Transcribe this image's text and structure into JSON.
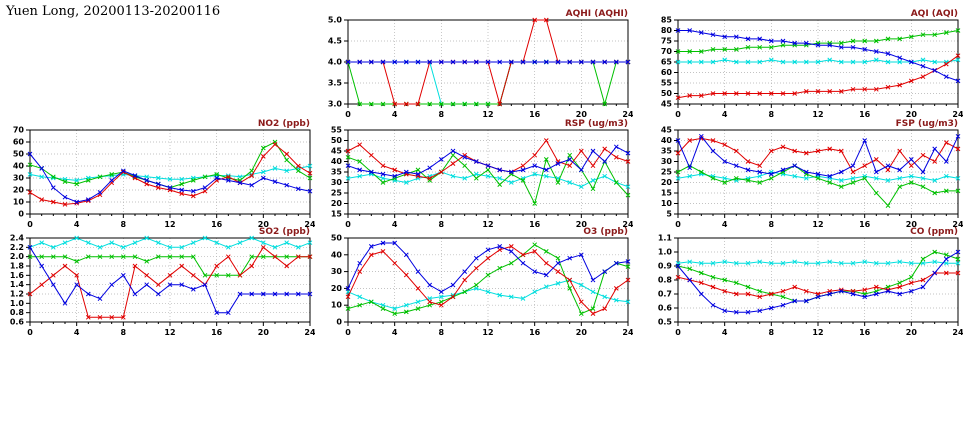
{
  "page": {
    "title": "Yuen Long, 20200113-20200116"
  },
  "palette": {
    "blue": "#0000e0",
    "red": "#e00000",
    "green": "#00c000",
    "cyan": "#00dede",
    "grid": "#b0b0b0",
    "axis": "#000000",
    "chart_title": "#8b1a1a"
  },
  "chart_data": [
    {
      "id": "aqhi",
      "type": "line",
      "title": "AQHI (AQHI)",
      "x_range": [
        0,
        24
      ],
      "x_step": 1,
      "x_major": 4,
      "y_range": [
        3.0,
        5.0
      ],
      "y_step": 0.5,
      "y_decimals": 1,
      "series": [
        {
          "name": "cyan",
          "color": "#00dede",
          "values": [
            4,
            4,
            4,
            4,
            4,
            4,
            4,
            4,
            3,
            3,
            3,
            3,
            3,
            3,
            4,
            4,
            4,
            4,
            4,
            4,
            4,
            4,
            4,
            4,
            4
          ]
        },
        {
          "name": "green",
          "color": "#00c000",
          "values": [
            4,
            3,
            3,
            3,
            3,
            3,
            3,
            3,
            3,
            3,
            3,
            3,
            3,
            3,
            4,
            4,
            4,
            4,
            4,
            4,
            4,
            4,
            3,
            4,
            4
          ]
        },
        {
          "name": "red",
          "color": "#e00000",
          "values": [
            4,
            4,
            4,
            4,
            3,
            3,
            3,
            4,
            4,
            4,
            4,
            4,
            4,
            3,
            4,
            4,
            5,
            5,
            4,
            4,
            4,
            4,
            4,
            4,
            4
          ]
        },
        {
          "name": "blue",
          "color": "#0000e0",
          "values": [
            4,
            4,
            4,
            4,
            4,
            4,
            4,
            4,
            4,
            4,
            4,
            4,
            4,
            4,
            4,
            4,
            4,
            4,
            4,
            4,
            4,
            4,
            4,
            4,
            4
          ]
        }
      ]
    },
    {
      "id": "aqi",
      "type": "line",
      "title": "AQI (AQI)",
      "x_range": [
        0,
        24
      ],
      "x_step": 1,
      "x_major": 4,
      "y_range": [
        45,
        85
      ],
      "y_step": 5,
      "y_decimals": 0,
      "series": [
        {
          "name": "cyan",
          "color": "#00dede",
          "values": [
            65,
            65,
            65,
            65,
            66,
            65,
            65,
            65,
            66,
            65,
            65,
            65,
            65,
            66,
            65,
            65,
            65,
            66,
            65,
            65,
            65,
            66,
            65,
            65,
            66
          ]
        },
        {
          "name": "green",
          "color": "#00c000",
          "values": [
            70,
            70,
            70,
            71,
            71,
            71,
            72,
            72,
            72,
            73,
            73,
            73,
            74,
            74,
            74,
            75,
            75,
            75,
            76,
            76,
            77,
            78,
            78,
            79,
            80
          ]
        },
        {
          "name": "red",
          "color": "#e00000",
          "values": [
            48,
            49,
            49,
            50,
            50,
            50,
            50,
            50,
            50,
            50,
            50,
            51,
            51,
            51,
            51,
            52,
            52,
            52,
            53,
            54,
            56,
            58,
            61,
            64,
            68
          ]
        },
        {
          "name": "blue",
          "color": "#0000e0",
          "values": [
            80,
            80,
            79,
            78,
            77,
            77,
            76,
            76,
            75,
            75,
            74,
            74,
            73,
            73,
            72,
            72,
            71,
            70,
            69,
            67,
            65,
            63,
            61,
            58,
            56
          ]
        }
      ]
    },
    {
      "id": "no2",
      "type": "line",
      "title": "NO2 (ppb)",
      "x_range": [
        0,
        24
      ],
      "x_step": 1,
      "x_major": 4,
      "y_range": [
        0,
        70
      ],
      "y_step": 10,
      "y_decimals": 0,
      "series": [
        {
          "name": "cyan",
          "color": "#00dede",
          "values": [
            33,
            31,
            30,
            29,
            28,
            30,
            31,
            32,
            33,
            32,
            31,
            30,
            29,
            29,
            30,
            31,
            32,
            32,
            31,
            33,
            35,
            38,
            36,
            38,
            40
          ]
        },
        {
          "name": "green",
          "color": "#00c000",
          "values": [
            41,
            38,
            31,
            27,
            25,
            28,
            31,
            33,
            35,
            31,
            28,
            25,
            22,
            25,
            28,
            31,
            33,
            30,
            28,
            36,
            55,
            60,
            45,
            36,
            30
          ]
        },
        {
          "name": "red",
          "color": "#e00000",
          "values": [
            18,
            12,
            10,
            8,
            9,
            11,
            16,
            26,
            35,
            30,
            25,
            22,
            20,
            17,
            15,
            19,
            28,
            31,
            26,
            32,
            48,
            58,
            50,
            40,
            34
          ]
        },
        {
          "name": "blue",
          "color": "#0000e0",
          "values": [
            50,
            38,
            22,
            14,
            10,
            12,
            18,
            28,
            36,
            32,
            28,
            25,
            22,
            20,
            19,
            22,
            30,
            28,
            26,
            24,
            30,
            27,
            24,
            21,
            19
          ]
        }
      ]
    },
    {
      "id": "rsp",
      "type": "line",
      "title": "RSP (ug/m3)",
      "x_range": [
        0,
        24
      ],
      "x_step": 1,
      "x_major": 4,
      "y_range": [
        15,
        55
      ],
      "y_step": 5,
      "y_decimals": 0,
      "series": [
        {
          "name": "cyan",
          "color": "#00dede",
          "values": [
            32,
            33,
            34,
            32,
            31,
            30,
            32,
            33,
            35,
            33,
            32,
            34,
            33,
            32,
            30,
            32,
            34,
            33,
            32,
            30,
            28,
            31,
            33,
            30,
            28
          ]
        },
        {
          "name": "green",
          "color": "#00c000",
          "values": [
            42,
            40,
            35,
            30,
            32,
            34,
            36,
            31,
            35,
            43,
            38,
            32,
            36,
            29,
            34,
            31,
            20,
            41,
            30,
            43,
            36,
            27,
            40,
            30,
            24
          ]
        },
        {
          "name": "red",
          "color": "#e00000",
          "values": [
            45,
            48,
            43,
            38,
            36,
            34,
            33,
            32,
            35,
            39,
            43,
            40,
            38,
            36,
            35,
            38,
            43,
            50,
            40,
            38,
            45,
            38,
            46,
            42,
            40
          ]
        },
        {
          "name": "blue",
          "color": "#0000e0",
          "values": [
            38,
            36,
            35,
            34,
            33,
            35,
            34,
            37,
            41,
            45,
            42,
            40,
            38,
            36,
            35,
            36,
            38,
            36,
            39,
            41,
            36,
            45,
            40,
            47,
            44
          ]
        }
      ]
    },
    {
      "id": "fsp",
      "type": "line",
      "title": "FSP (ug/m3)",
      "x_range": [
        0,
        24
      ],
      "x_step": 1,
      "x_major": 4,
      "y_range": [
        5,
        45
      ],
      "y_step": 5,
      "y_decimals": 0,
      "series": [
        {
          "name": "cyan",
          "color": "#00dede",
          "values": [
            22,
            23,
            24,
            23,
            22,
            21,
            22,
            23,
            25,
            24,
            23,
            22,
            23,
            22,
            21,
            22,
            23,
            22,
            21,
            22,
            23,
            22,
            21,
            23,
            22
          ]
        },
        {
          "name": "green",
          "color": "#00c000",
          "values": [
            25,
            28,
            25,
            22,
            20,
            22,
            21,
            20,
            22,
            25,
            28,
            24,
            22,
            20,
            18,
            20,
            22,
            15,
            9,
            18,
            20,
            18,
            15,
            16,
            16
          ]
        },
        {
          "name": "red",
          "color": "#e00000",
          "values": [
            34,
            40,
            41,
            40,
            38,
            35,
            30,
            28,
            35,
            37,
            35,
            34,
            35,
            36,
            35,
            25,
            28,
            31,
            26,
            35,
            28,
            33,
            30,
            39,
            36
          ]
        },
        {
          "name": "blue",
          "color": "#0000e0",
          "values": [
            40,
            27,
            42,
            35,
            30,
            28,
            26,
            25,
            24,
            26,
            28,
            25,
            24,
            23,
            25,
            28,
            40,
            25,
            28,
            26,
            31,
            25,
            36,
            30,
            42
          ]
        }
      ]
    },
    {
      "id": "so2",
      "type": "line",
      "title": "SO2 (ppb)",
      "x_range": [
        0,
        24
      ],
      "x_step": 1,
      "x_major": 4,
      "y_range": [
        0.6,
        2.4
      ],
      "y_step": 0.2,
      "y_decimals": 1,
      "series": [
        {
          "name": "cyan",
          "color": "#00dede",
          "values": [
            2.2,
            2.3,
            2.2,
            2.3,
            2.4,
            2.3,
            2.2,
            2.3,
            2.2,
            2.3,
            2.4,
            2.3,
            2.2,
            2.2,
            2.3,
            2.4,
            2.3,
            2.2,
            2.3,
            2.4,
            2.3,
            2.2,
            2.3,
            2.2,
            2.3
          ]
        },
        {
          "name": "green",
          "color": "#00c000",
          "values": [
            2.0,
            2.0,
            2.0,
            2.0,
            1.9,
            2.0,
            2.0,
            2.0,
            2.0,
            2.0,
            1.9,
            2.0,
            2.0,
            2.0,
            2.0,
            1.6,
            1.6,
            1.6,
            1.6,
            2.0,
            2.0,
            2.0,
            2.0,
            2.0,
            2.0
          ]
        },
        {
          "name": "red",
          "color": "#e00000",
          "values": [
            1.2,
            1.4,
            1.6,
            1.8,
            1.6,
            0.7,
            0.7,
            0.7,
            0.7,
            1.8,
            1.6,
            1.4,
            1.6,
            1.8,
            1.6,
            1.4,
            1.8,
            2.0,
            1.6,
            1.8,
            2.2,
            2.0,
            1.8,
            2.0,
            2.0
          ]
        },
        {
          "name": "blue",
          "color": "#0000e0",
          "values": [
            2.2,
            1.8,
            1.4,
            1.0,
            1.4,
            1.2,
            1.1,
            1.4,
            1.6,
            1.2,
            1.4,
            1.2,
            1.4,
            1.4,
            1.3,
            1.4,
            0.8,
            0.8,
            1.2,
            1.2,
            1.2,
            1.2,
            1.2,
            1.2,
            1.2
          ]
        }
      ]
    },
    {
      "id": "o3",
      "type": "line",
      "title": "O3 (ppb)",
      "x_range": [
        0,
        24
      ],
      "x_step": 1,
      "x_major": 4,
      "y_range": [
        0,
        50
      ],
      "y_step": 10,
      "y_decimals": 0,
      "series": [
        {
          "name": "cyan",
          "color": "#00dede",
          "values": [
            18,
            15,
            12,
            10,
            8,
            10,
            12,
            14,
            15,
            16,
            18,
            20,
            18,
            16,
            15,
            14,
            18,
            21,
            23,
            25,
            22,
            18,
            15,
            13,
            12
          ]
        },
        {
          "name": "green",
          "color": "#00c000",
          "values": [
            8,
            10,
            12,
            8,
            5,
            6,
            8,
            10,
            12,
            15,
            18,
            22,
            28,
            32,
            35,
            40,
            46,
            42,
            38,
            20,
            5,
            8,
            30,
            35,
            33
          ]
        },
        {
          "name": "red",
          "color": "#e00000",
          "values": [
            15,
            30,
            40,
            42,
            35,
            28,
            20,
            12,
            10,
            15,
            25,
            32,
            38,
            43,
            45,
            40,
            42,
            35,
            30,
            25,
            12,
            5,
            8,
            20,
            25
          ]
        },
        {
          "name": "blue",
          "color": "#0000e0",
          "values": [
            20,
            35,
            45,
            47,
            47,
            40,
            30,
            22,
            18,
            22,
            30,
            38,
            43,
            45,
            42,
            35,
            30,
            28,
            35,
            38,
            40,
            25,
            30,
            35,
            36
          ]
        }
      ]
    },
    {
      "id": "co",
      "type": "line",
      "title": "CO (ppm)",
      "x_range": [
        0,
        24
      ],
      "x_step": 1,
      "x_major": 4,
      "y_range": [
        0.5,
        1.1
      ],
      "y_step": 0.1,
      "y_decimals": 1,
      "series": [
        {
          "name": "cyan",
          "color": "#00dede",
          "values": [
            0.92,
            0.93,
            0.92,
            0.92,
            0.93,
            0.92,
            0.92,
            0.93,
            0.92,
            0.92,
            0.93,
            0.92,
            0.92,
            0.93,
            0.92,
            0.92,
            0.93,
            0.92,
            0.92,
            0.93,
            0.92,
            0.92,
            0.93,
            0.92,
            0.92
          ]
        },
        {
          "name": "green",
          "color": "#00c000",
          "values": [
            0.9,
            0.88,
            0.85,
            0.82,
            0.8,
            0.78,
            0.75,
            0.72,
            0.7,
            0.68,
            0.65,
            0.65,
            0.68,
            0.7,
            0.72,
            0.72,
            0.7,
            0.72,
            0.75,
            0.78,
            0.82,
            0.95,
            1.0,
            0.98,
            0.95
          ]
        },
        {
          "name": "red",
          "color": "#e00000",
          "values": [
            0.82,
            0.8,
            0.78,
            0.75,
            0.72,
            0.7,
            0.7,
            0.68,
            0.7,
            0.72,
            0.75,
            0.72,
            0.7,
            0.72,
            0.73,
            0.72,
            0.73,
            0.75,
            0.73,
            0.75,
            0.78,
            0.8,
            0.85,
            0.85,
            0.85
          ]
        },
        {
          "name": "blue",
          "color": "#0000e0",
          "values": [
            0.9,
            0.8,
            0.7,
            0.62,
            0.58,
            0.57,
            0.57,
            0.58,
            0.6,
            0.62,
            0.65,
            0.65,
            0.68,
            0.7,
            0.72,
            0.7,
            0.68,
            0.7,
            0.72,
            0.7,
            0.72,
            0.75,
            0.85,
            0.95,
            1.0
          ]
        }
      ]
    }
  ]
}
